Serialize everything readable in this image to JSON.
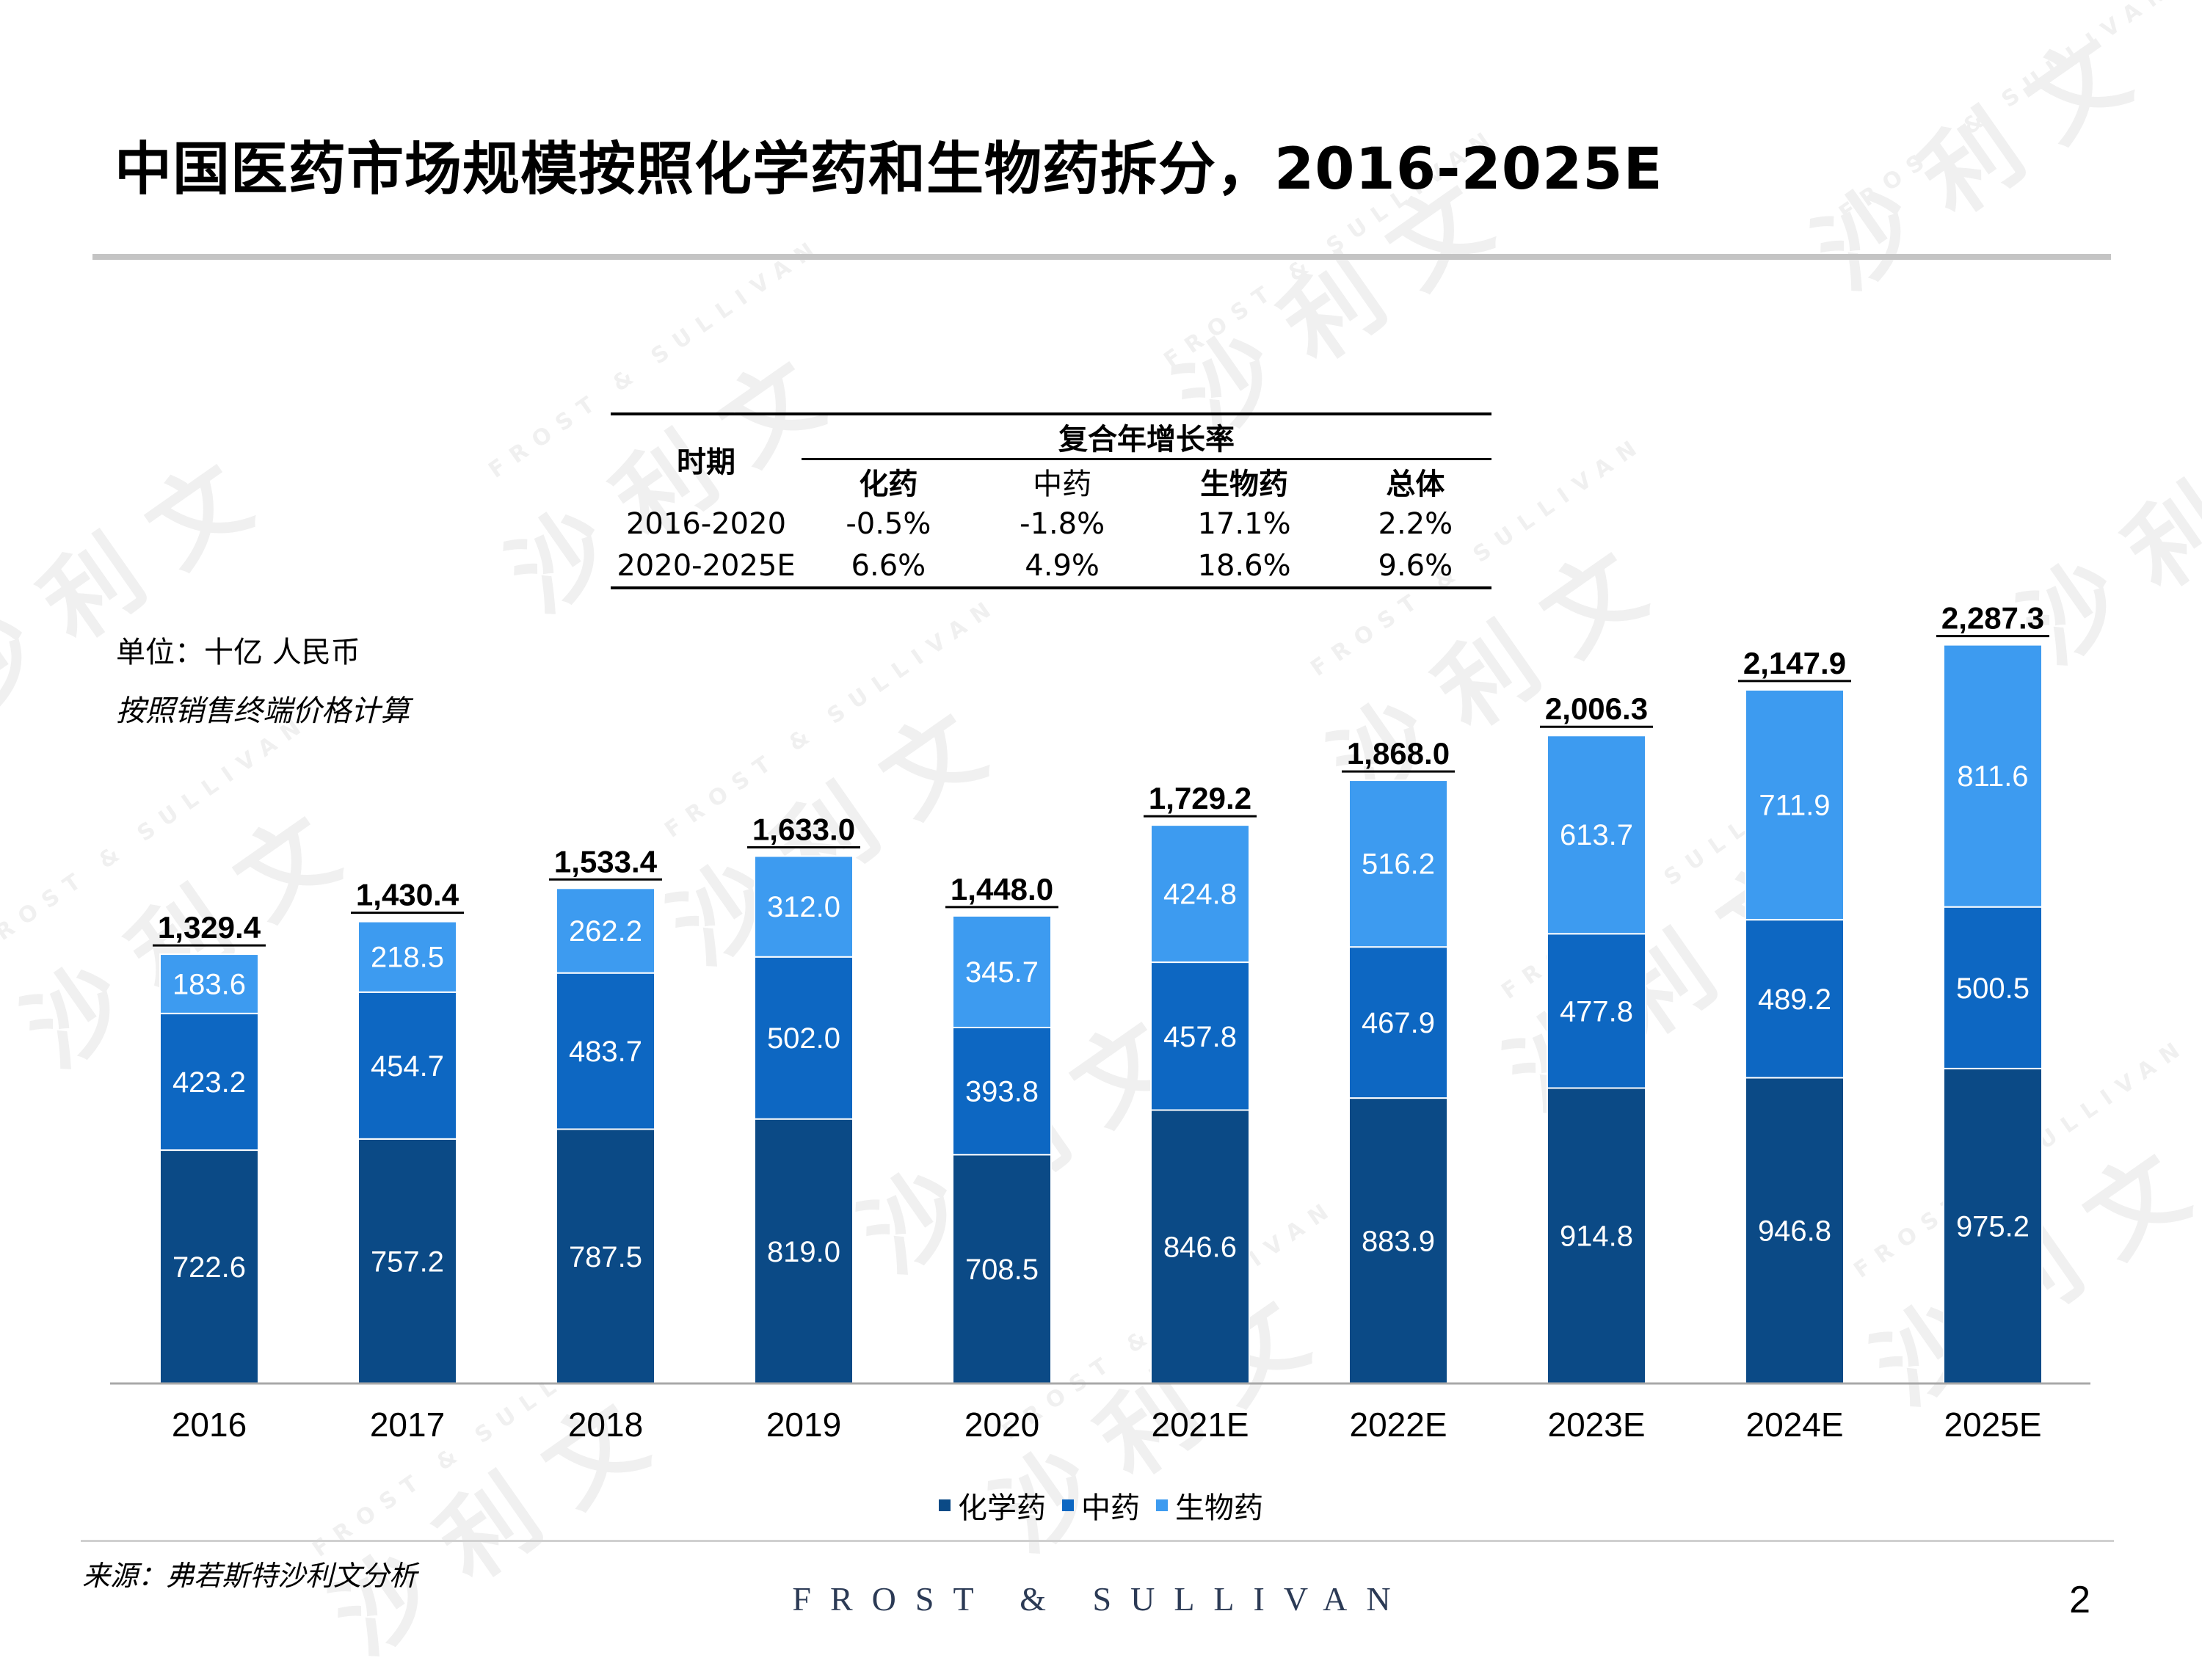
{
  "title": "中国医药市场规模按照化学药和生物药拆分，2016-2025E",
  "cagr_table": {
    "period_header": "时期",
    "group_header": "复合年增长率",
    "columns": [
      "化药",
      "中药",
      "生物药",
      "总体"
    ],
    "rows": [
      {
        "period": "2016-2020",
        "values": [
          "-0.5%",
          "-1.8%",
          "17.1%",
          "2.2%"
        ]
      },
      {
        "period": "2020-2025E",
        "values": [
          "6.6%",
          "4.9%",
          "18.6%",
          "9.6%"
        ]
      }
    ]
  },
  "notes": {
    "unit": "单位：十亿 人民币",
    "calc": "按照销售终端价格计算"
  },
  "chart_data": {
    "type": "bar",
    "stacked": true,
    "categories": [
      "2016",
      "2017",
      "2018",
      "2019",
      "2020",
      "2021E",
      "2022E",
      "2023E",
      "2024E",
      "2025E"
    ],
    "series": [
      {
        "name": "化学药",
        "color": "#0b4a86",
        "values": [
          722.6,
          757.2,
          787.5,
          819.0,
          708.5,
          846.6,
          883.9,
          914.8,
          946.8,
          975.2
        ]
      },
      {
        "name": "中药",
        "color": "#0d67c2",
        "values": [
          423.2,
          454.7,
          483.7,
          502.0,
          393.8,
          457.8,
          467.9,
          477.8,
          489.2,
          500.5
        ]
      },
      {
        "name": "生物药",
        "color": "#3d9bf0",
        "values": [
          183.6,
          218.5,
          262.2,
          312.0,
          345.7,
          424.8,
          516.2,
          613.7,
          711.9,
          811.6
        ]
      }
    ],
    "value_labels": [
      [
        "722.6",
        "757.2",
        "787.5",
        "819.0",
        "708.5",
        "846.6",
        "883.9",
        "914.8",
        "946.8",
        "975.2"
      ],
      [
        "423.2",
        "454.7",
        "483.7",
        "502.0",
        "393.8",
        "457.8",
        "467.9",
        "477.8",
        "489.2",
        "500.5"
      ],
      [
        "183.6",
        "218.5",
        "262.2",
        "312.0",
        "345.7",
        "424.8",
        "516.2",
        "613.7",
        "711.9",
        "811.6"
      ]
    ],
    "totals": [
      "1,329.4",
      "1,430.4",
      "1,533.4",
      "1,633.0",
      "1,448.0",
      "1,729.2",
      "1,868.0",
      "2,006.3",
      "2,147.9",
      "2,287.3"
    ],
    "legend_position": "bottom",
    "grid": false
  },
  "source": "来源：弗若斯特沙利文分析",
  "brand": "FROST & SULLIVAN",
  "page_number": "2",
  "watermark": {
    "text": "沙 利 文",
    "subtext": "FROST & SULLIVAN"
  }
}
